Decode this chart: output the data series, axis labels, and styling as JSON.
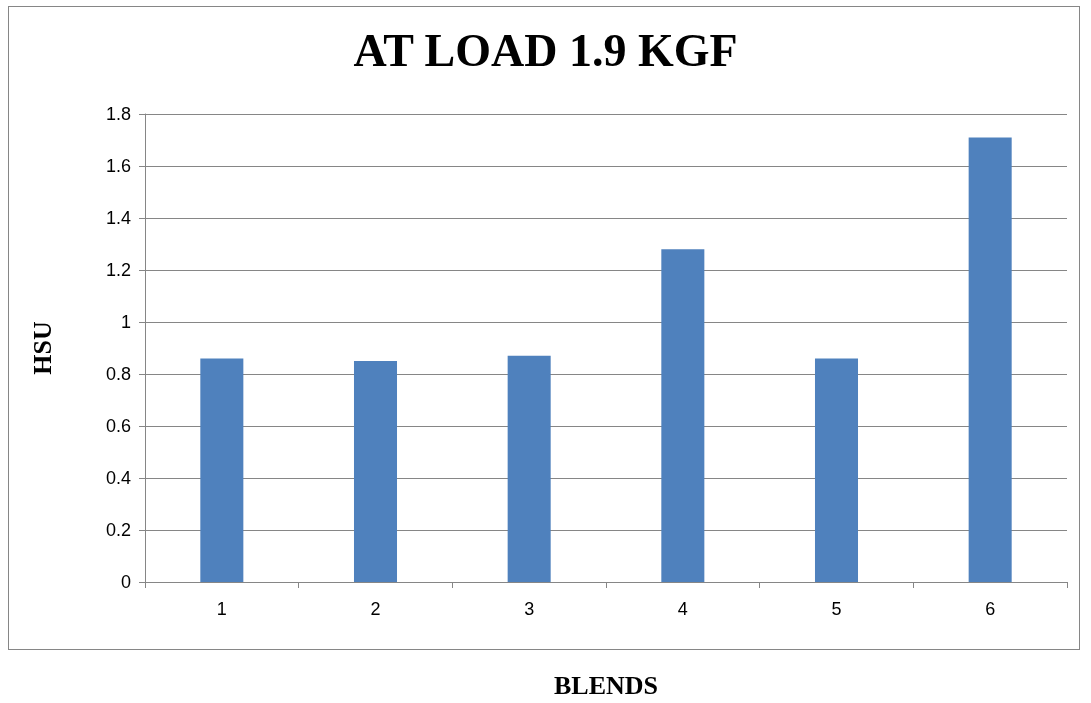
{
  "chart_data": {
    "type": "bar",
    "title": "AT LOAD 1.9 KGF",
    "xlabel": "BLENDS",
    "ylabel": "HSU",
    "categories": [
      "1",
      "2",
      "3",
      "4",
      "5",
      "6"
    ],
    "values": [
      0.86,
      0.85,
      0.87,
      1.28,
      0.86,
      1.71
    ],
    "color": "#4f81bd",
    "ylim": [
      0,
      1.8
    ],
    "yticks": [
      0,
      0.2,
      0.4,
      0.6,
      0.8,
      1,
      1.2,
      1.4,
      1.6,
      1.8
    ],
    "grid": "y"
  }
}
